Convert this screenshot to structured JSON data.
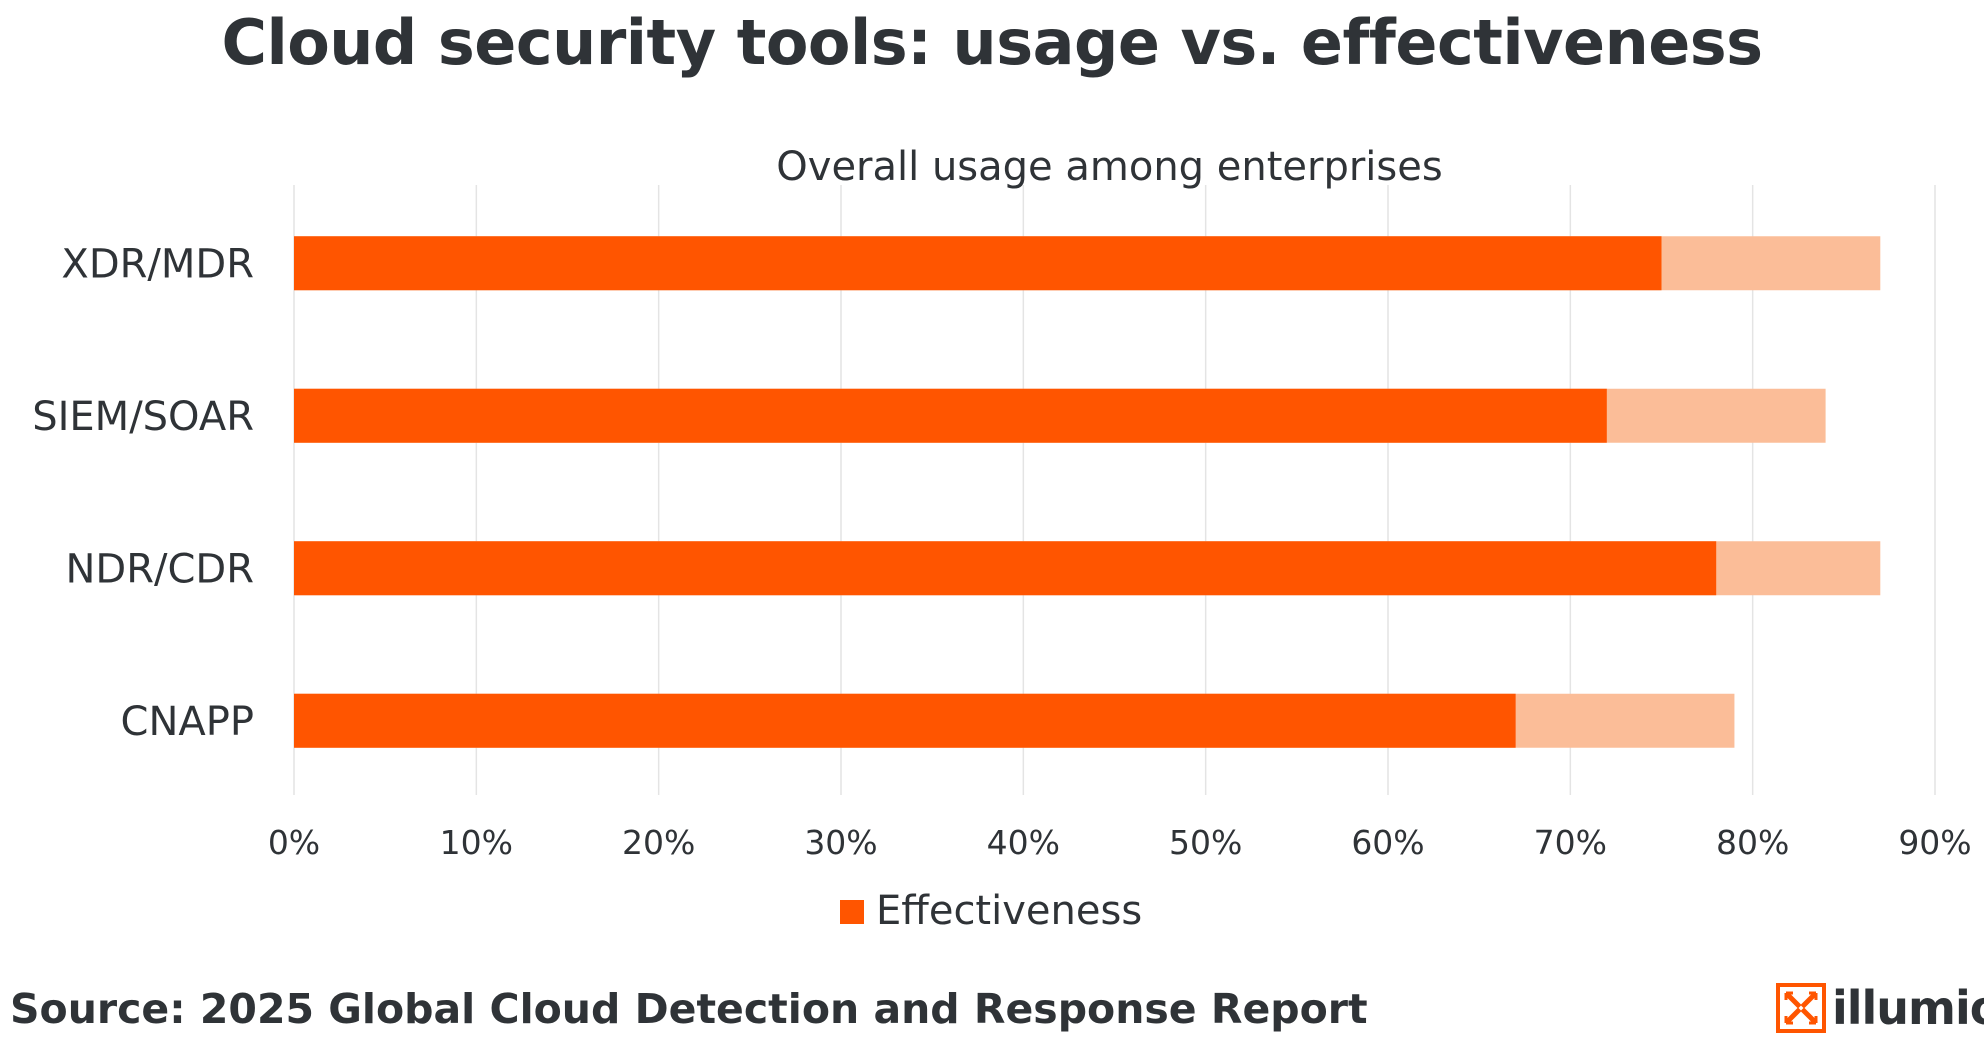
{
  "title": "Cloud security tools: usage vs. effectiveness",
  "source": "Source:  2025 Global Cloud Detection and Response Report",
  "logo": {
    "text": "illumio",
    "icon": "illumio-logo-icon"
  },
  "colors": {
    "effectiveness": "#ff5500",
    "usage": "#fbbd98",
    "grid": "#e4e4e4",
    "text": "#2f3337"
  },
  "chart_data": {
    "type": "bar",
    "orientation": "horizontal",
    "title": "Overall usage among enterprises",
    "categories": [
      "XDR/MDR",
      "SIEM/SOAR",
      "NDR/CDR",
      "CNAPP"
    ],
    "series": [
      {
        "name": "Effectiveness",
        "values": [
          75,
          72,
          78,
          67
        ]
      },
      {
        "name": "Overall usage",
        "values": [
          87,
          84,
          87,
          79
        ]
      }
    ],
    "xlim": [
      0,
      90
    ],
    "xticks": [
      0,
      10,
      20,
      30,
      40,
      50,
      60,
      70,
      80,
      90
    ],
    "tick_suffix": "%",
    "grid": true,
    "legend": {
      "position": "bottom",
      "entries": [
        "Effectiveness"
      ]
    }
  }
}
